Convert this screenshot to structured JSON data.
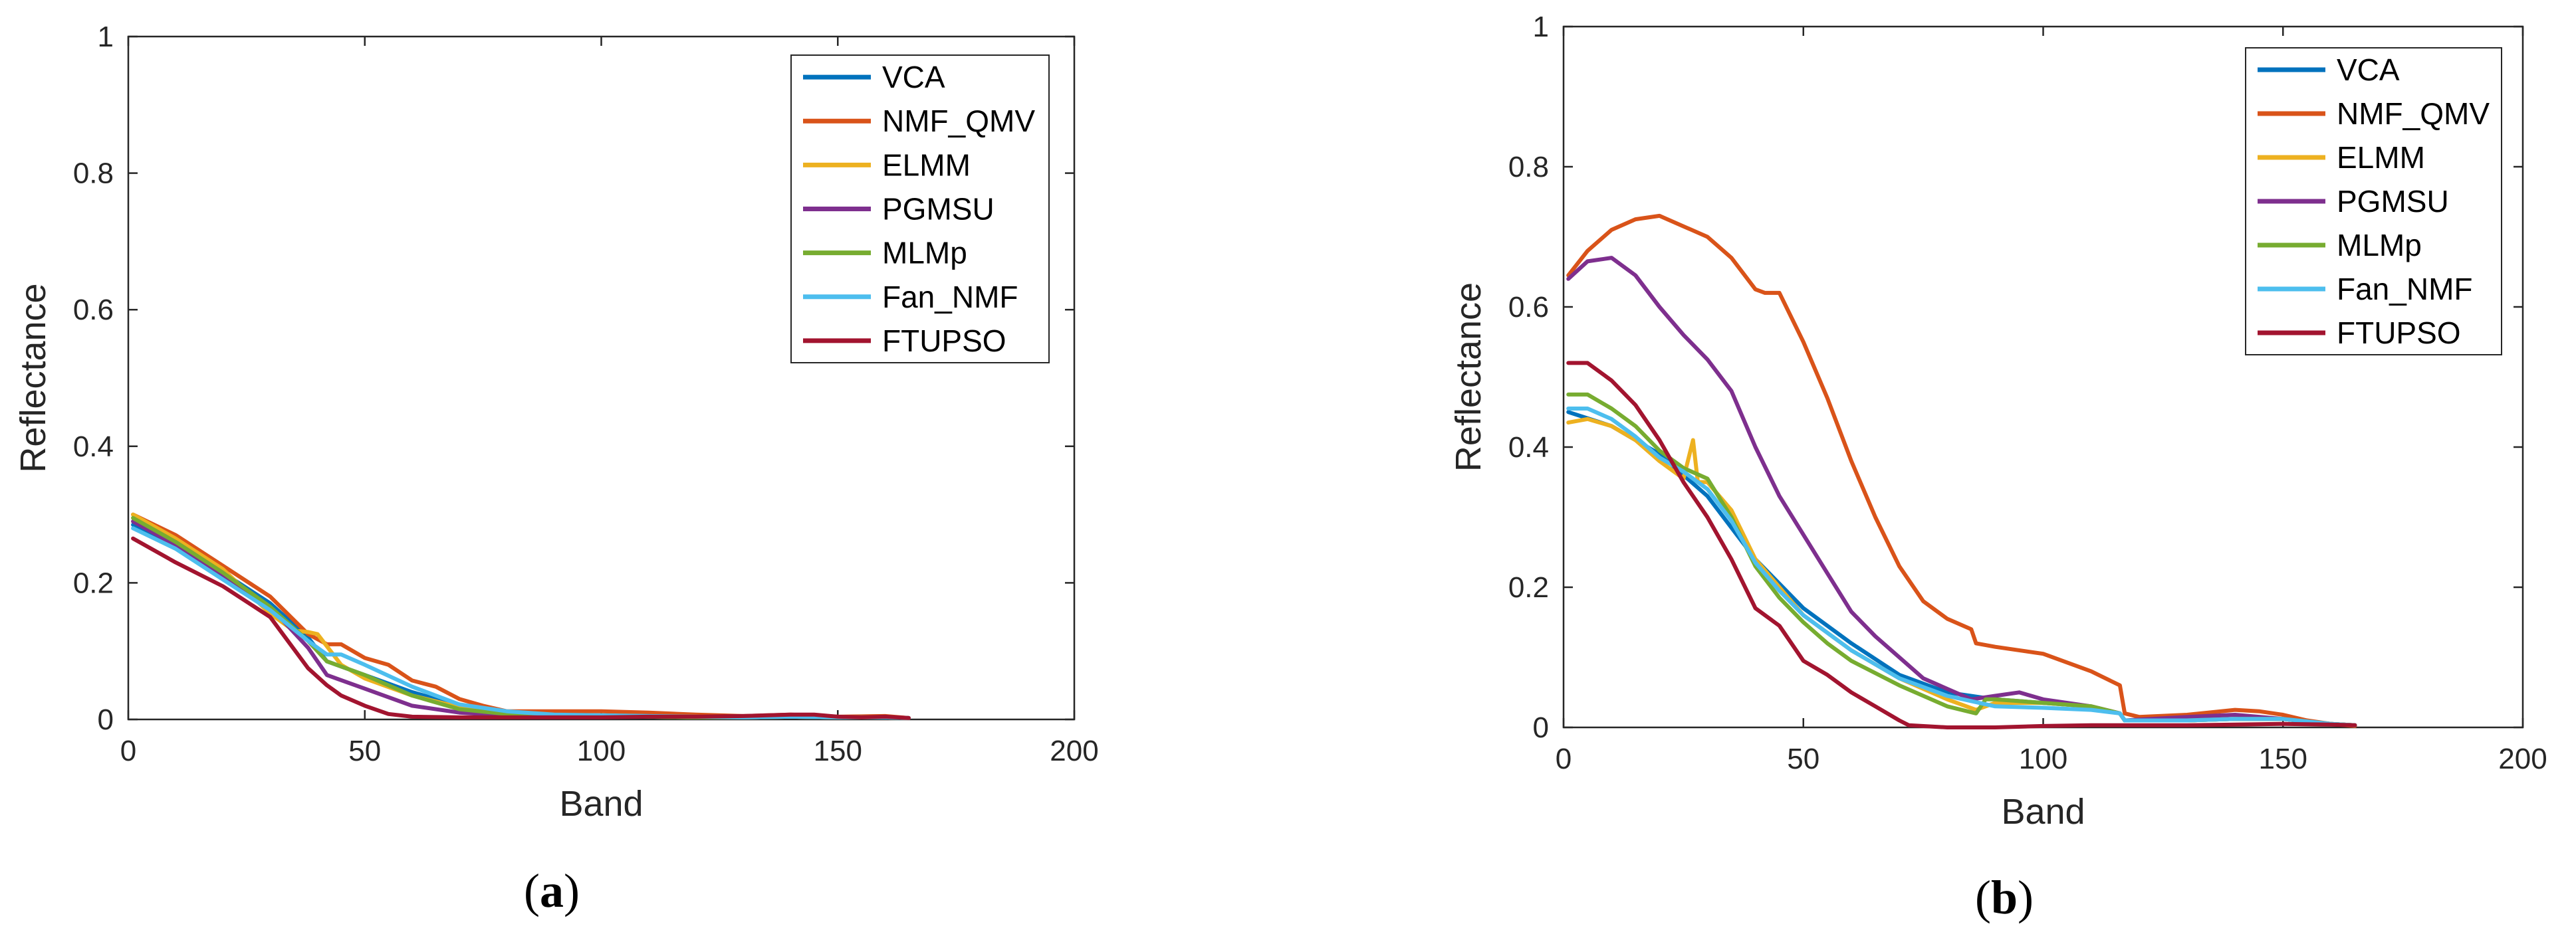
{
  "chart_data": [
    {
      "type": "line",
      "caption_letter": "a",
      "xlabel": "Band",
      "ylabel": "Reflectance",
      "xlim": [
        0,
        200
      ],
      "ylim": [
        0,
        1
      ],
      "xticks": [
        "0",
        "50",
        "100",
        "150",
        "200"
      ],
      "yticks": [
        "0",
        "0.2",
        "0.4",
        "0.6",
        "0.8",
        "1"
      ],
      "legend": [
        "VCA",
        "NMF_QMV",
        "ELMM",
        "PGMSU",
        "MLMp",
        "Fan_NMF",
        "FTUPSO"
      ],
      "colors": [
        "#0072BD",
        "#D95319",
        "#EDB120",
        "#7E2F8E",
        "#77AC30",
        "#4DBEEE",
        "#A2142F"
      ],
      "series": [
        {
          "name": "VCA",
          "x": [
            1,
            10,
            20,
            30,
            38,
            42,
            50,
            60,
            70,
            80,
            90,
            100,
            110,
            120,
            130,
            140,
            150,
            160,
            165
          ],
          "y": [
            0.285,
            0.255,
            0.215,
            0.17,
            0.12,
            0.085,
            0.065,
            0.04,
            0.02,
            0.01,
            0.006,
            0.005,
            0.004,
            0.003,
            0.003,
            0.004,
            0.003,
            0.003,
            0.002
          ]
        },
        {
          "name": "NMF_QMV",
          "x": [
            1,
            10,
            20,
            30,
            38,
            42,
            45,
            50,
            55,
            60,
            65,
            70,
            75,
            80,
            90,
            100,
            110,
            120,
            130,
            140,
            150,
            160,
            165
          ],
          "y": [
            0.3,
            0.27,
            0.225,
            0.18,
            0.125,
            0.11,
            0.11,
            0.09,
            0.08,
            0.057,
            0.048,
            0.03,
            0.02,
            0.012,
            0.012,
            0.012,
            0.01,
            0.007,
            0.005,
            0.007,
            0.004,
            0.005,
            0.002
          ]
        },
        {
          "name": "ELMM",
          "x": [
            1,
            10,
            20,
            30,
            35,
            38,
            40,
            45,
            50,
            60,
            70,
            80,
            90,
            100,
            110,
            120,
            130,
            140,
            150,
            160,
            165
          ],
          "y": [
            0.3,
            0.265,
            0.22,
            0.155,
            0.13,
            0.128,
            0.125,
            0.08,
            0.06,
            0.035,
            0.018,
            0.01,
            0.006,
            0.004,
            0.004,
            0.003,
            0.003,
            0.004,
            0.003,
            0.003,
            0.002
          ]
        },
        {
          "name": "PGMSU",
          "x": [
            1,
            10,
            20,
            30,
            38,
            42,
            50,
            60,
            70,
            80,
            90,
            100,
            110,
            120,
            130,
            140,
            150,
            160,
            165
          ],
          "y": [
            0.29,
            0.255,
            0.21,
            0.165,
            0.105,
            0.065,
            0.045,
            0.02,
            0.01,
            0.006,
            0.006,
            0.005,
            0.005,
            0.003,
            0.003,
            0.004,
            0.003,
            0.003,
            0.002
          ]
        },
        {
          "name": "MLMp",
          "x": [
            1,
            10,
            20,
            30,
            38,
            42,
            50,
            60,
            70,
            80,
            90,
            100,
            110,
            120,
            130,
            140,
            150,
            160,
            165
          ],
          "y": [
            0.295,
            0.26,
            0.215,
            0.165,
            0.115,
            0.085,
            0.065,
            0.035,
            0.015,
            0.008,
            0.005,
            0.005,
            0.004,
            0.003,
            0.003,
            0.004,
            0.003,
            0.003,
            0.002
          ]
        },
        {
          "name": "Fan_NMF",
          "x": [
            1,
            10,
            20,
            30,
            38,
            42,
            45,
            50,
            60,
            70,
            80,
            90,
            100,
            110,
            120,
            130,
            140,
            150,
            160,
            165
          ],
          "y": [
            0.28,
            0.25,
            0.205,
            0.16,
            0.115,
            0.095,
            0.095,
            0.08,
            0.048,
            0.022,
            0.012,
            0.007,
            0.006,
            0.005,
            0.004,
            0.003,
            0.004,
            0.003,
            0.003,
            0.002
          ]
        },
        {
          "name": "FTUPSO",
          "x": [
            1,
            10,
            20,
            30,
            38,
            42,
            45,
            50,
            55,
            60,
            70,
            80,
            90,
            100,
            110,
            120,
            130,
            140,
            145,
            150,
            155,
            160,
            165
          ],
          "y": [
            0.265,
            0.23,
            0.195,
            0.15,
            0.075,
            0.05,
            0.035,
            0.02,
            0.008,
            0.004,
            0.003,
            0.003,
            0.003,
            0.003,
            0.004,
            0.004,
            0.005,
            0.007,
            0.007,
            0.004,
            0.003,
            0.004,
            0.002
          ]
        }
      ]
    },
    {
      "type": "line",
      "caption_letter": "b",
      "xlabel": "Band",
      "ylabel": "Reflectance",
      "xlim": [
        0,
        200
      ],
      "ylim": [
        0,
        1
      ],
      "xticks": [
        "0",
        "50",
        "100",
        "150",
        "200"
      ],
      "yticks": [
        "0",
        "0.2",
        "0.4",
        "0.6",
        "0.8",
        "1"
      ],
      "legend": [
        "VCA",
        "NMF_QMV",
        "ELMM",
        "PGMSU",
        "MLMp",
        "Fan_NMF",
        "FTUPSO"
      ],
      "colors": [
        "#0072BD",
        "#D95319",
        "#EDB120",
        "#7E2F8E",
        "#77AC30",
        "#4DBEEE",
        "#A2142F"
      ],
      "series": [
        {
          "name": "VCA",
          "x": [
            1,
            10,
            20,
            30,
            40,
            50,
            60,
            70,
            80,
            90,
            100,
            110,
            116,
            117,
            130,
            140,
            150,
            160,
            165
          ],
          "y": [
            0.45,
            0.43,
            0.39,
            0.33,
            0.24,
            0.17,
            0.12,
            0.075,
            0.05,
            0.04,
            0.035,
            0.03,
            0.02,
            0.01,
            0.01,
            0.012,
            0.012,
            0.005,
            0.003
          ]
        },
        {
          "name": "NMF_QMV",
          "x": [
            1,
            5,
            10,
            15,
            20,
            25,
            30,
            35,
            40,
            42,
            45,
            50,
            55,
            60,
            65,
            70,
            75,
            80,
            85,
            86,
            90,
            100,
            110,
            116,
            117,
            120,
            130,
            140,
            145,
            150,
            155,
            160,
            165
          ],
          "y": [
            0.645,
            0.68,
            0.71,
            0.725,
            0.73,
            0.715,
            0.7,
            0.67,
            0.625,
            0.62,
            0.62,
            0.55,
            0.47,
            0.38,
            0.3,
            0.23,
            0.18,
            0.155,
            0.14,
            0.12,
            0.115,
            0.105,
            0.08,
            0.06,
            0.02,
            0.015,
            0.018,
            0.025,
            0.023,
            0.018,
            0.01,
            0.005,
            0.002
          ]
        },
        {
          "name": "ELMM",
          "x": [
            1,
            5,
            10,
            15,
            20,
            25,
            27,
            28,
            30,
            35,
            40,
            50,
            60,
            70,
            80,
            86,
            90,
            100,
            110,
            116,
            117,
            130,
            140,
            150,
            160,
            165
          ],
          "y": [
            0.435,
            0.44,
            0.43,
            0.41,
            0.38,
            0.355,
            0.41,
            0.35,
            0.35,
            0.31,
            0.24,
            0.16,
            0.11,
            0.07,
            0.04,
            0.025,
            0.035,
            0.035,
            0.03,
            0.02,
            0.01,
            0.01,
            0.012,
            0.012,
            0.005,
            0.003
          ]
        },
        {
          "name": "PGMSU",
          "x": [
            1,
            5,
            10,
            15,
            20,
            25,
            30,
            35,
            40,
            45,
            50,
            55,
            60,
            65,
            70,
            75,
            80,
            85,
            90,
            95,
            100,
            105,
            110,
            116,
            117,
            130,
            140,
            150,
            160,
            165
          ],
          "y": [
            0.64,
            0.665,
            0.67,
            0.645,
            0.6,
            0.56,
            0.525,
            0.48,
            0.4,
            0.33,
            0.275,
            0.22,
            0.165,
            0.13,
            0.1,
            0.07,
            0.055,
            0.04,
            0.045,
            0.05,
            0.04,
            0.035,
            0.03,
            0.02,
            0.01,
            0.015,
            0.018,
            0.012,
            0.005,
            0.003
          ]
        },
        {
          "name": "MLMp",
          "x": [
            1,
            5,
            10,
            15,
            20,
            25,
            30,
            35,
            40,
            45,
            50,
            55,
            60,
            70,
            80,
            86,
            88,
            90,
            100,
            110,
            116,
            117,
            130,
            140,
            150,
            160,
            165
          ],
          "y": [
            0.475,
            0.475,
            0.455,
            0.43,
            0.395,
            0.37,
            0.355,
            0.3,
            0.23,
            0.185,
            0.15,
            0.12,
            0.095,
            0.06,
            0.03,
            0.02,
            0.04,
            0.04,
            0.035,
            0.03,
            0.02,
            0.01,
            0.01,
            0.012,
            0.012,
            0.005,
            0.003
          ]
        },
        {
          "name": "Fan_NMF",
          "x": [
            1,
            5,
            10,
            15,
            20,
            25,
            30,
            35,
            40,
            45,
            50,
            55,
            60,
            70,
            80,
            90,
            100,
            110,
            116,
            117,
            130,
            140,
            150,
            160,
            165
          ],
          "y": [
            0.455,
            0.455,
            0.44,
            0.415,
            0.385,
            0.365,
            0.34,
            0.295,
            0.235,
            0.195,
            0.16,
            0.135,
            0.11,
            0.07,
            0.045,
            0.03,
            0.028,
            0.025,
            0.02,
            0.01,
            0.01,
            0.012,
            0.012,
            0.005,
            0.003
          ]
        },
        {
          "name": "FTUPSO",
          "x": [
            1,
            5,
            10,
            15,
            20,
            25,
            30,
            35,
            40,
            45,
            50,
            55,
            60,
            65,
            70,
            72,
            80,
            90,
            100,
            110,
            120,
            130,
            140,
            150,
            160,
            165
          ],
          "y": [
            0.52,
            0.52,
            0.495,
            0.46,
            0.41,
            0.35,
            0.3,
            0.24,
            0.17,
            0.145,
            0.095,
            0.075,
            0.05,
            0.03,
            0.01,
            0.003,
            0.0,
            0.0,
            0.002,
            0.003,
            0.003,
            0.003,
            0.004,
            0.005,
            0.004,
            0.003
          ]
        }
      ]
    }
  ]
}
